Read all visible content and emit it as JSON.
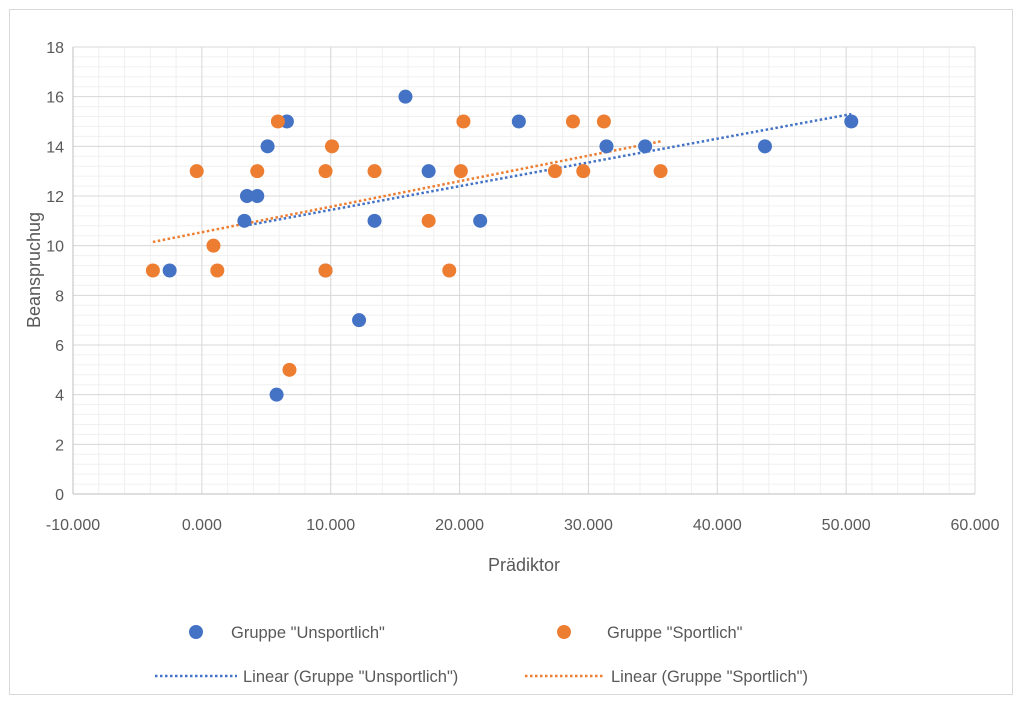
{
  "chart_data": {
    "type": "scatter",
    "title": "",
    "xlabel": "Prädiktor",
    "ylabel": "Beanspruchug",
    "xlim": [
      -10,
      60
    ],
    "ylim": [
      0,
      18
    ],
    "x_ticks": [
      -10,
      0,
      10,
      20,
      30,
      40,
      50,
      60
    ],
    "x_tick_labels": [
      "-10.000",
      "0.000",
      "10.000",
      "20.000",
      "30.000",
      "40.000",
      "50.000",
      "60.000"
    ],
    "y_ticks": [
      0,
      2,
      4,
      6,
      8,
      10,
      12,
      14,
      16,
      18
    ],
    "y_tick_labels": [
      "0",
      "2",
      "4",
      "6",
      "8",
      "10",
      "12",
      "14",
      "16",
      "18"
    ],
    "grid": true,
    "legend_position": "bottom",
    "series": [
      {
        "name": "Gruppe \"Unsportlich\"",
        "color": "#4472c4",
        "points": [
          [
            -2.5,
            9
          ],
          [
            3.3,
            11
          ],
          [
            3.5,
            12
          ],
          [
            4.3,
            12
          ],
          [
            5.1,
            14
          ],
          [
            5.8,
            4
          ],
          [
            6.6,
            15
          ],
          [
            9.6,
            9
          ],
          [
            12.2,
            7
          ],
          [
            13.4,
            11
          ],
          [
            15.8,
            16
          ],
          [
            17.6,
            13
          ],
          [
            21.6,
            11
          ],
          [
            24.6,
            15
          ],
          [
            31.4,
            14
          ],
          [
            34.4,
            14
          ],
          [
            43.7,
            14
          ],
          [
            50.4,
            15
          ]
        ]
      },
      {
        "name": "Gruppe \"Sportlich\"",
        "color": "#ed7d31",
        "points": [
          [
            -3.8,
            9
          ],
          [
            -0.4,
            13
          ],
          [
            0.9,
            10
          ],
          [
            1.2,
            9
          ],
          [
            4.3,
            13
          ],
          [
            5.9,
            15
          ],
          [
            6.8,
            5
          ],
          [
            9.6,
            13
          ],
          [
            9.6,
            9
          ],
          [
            10.1,
            14
          ],
          [
            13.4,
            13
          ],
          [
            17.6,
            11
          ],
          [
            19.2,
            9
          ],
          [
            20.1,
            13
          ],
          [
            20.3,
            15
          ],
          [
            27.4,
            13
          ],
          [
            28.8,
            15
          ],
          [
            29.6,
            13
          ],
          [
            31.2,
            15
          ],
          [
            35.6,
            13
          ]
        ]
      }
    ],
    "trendlines": [
      {
        "name": "Linear (Gruppe \"Unsportlich\")",
        "color": "#4472c4",
        "x": [
          3.3,
          50.4
        ],
        "y": [
          10.8,
          15.3
        ]
      },
      {
        "name": "Linear (Gruppe \"Sportlich\")",
        "color": "#ed7d31",
        "x": [
          -3.8,
          35.6
        ],
        "y": [
          10.15,
          14.2
        ]
      }
    ]
  }
}
